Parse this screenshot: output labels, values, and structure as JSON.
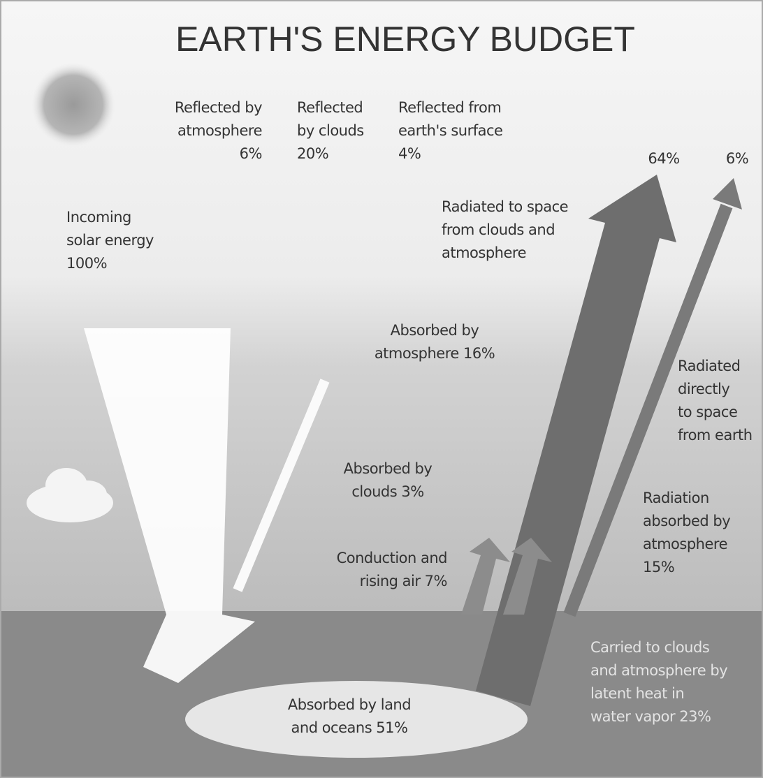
{
  "title": "EARTH'S ENERGY BUDGET",
  "labels": [
    {
      "lines": [
        "Reflected by",
        "atmosphere",
        "6%"
      ]
    },
    {
      "lines": [
        "Reflected",
        "by clouds",
        "20%"
      ]
    },
    {
      "lines": [
        "Reflected from",
        "earth's surface",
        "4%"
      ]
    },
    {
      "lines": [
        "64%"
      ]
    },
    {
      "lines": [
        "6%"
      ]
    },
    {
      "lines": [
        "Incoming",
        "solar energy",
        "100%"
      ]
    },
    {
      "lines": [
        "Radiated to space",
        "from clouds and",
        "atmosphere"
      ]
    },
    {
      "lines": [
        "Absorbed by",
        "atmosphere 16%"
      ]
    },
    {
      "lines": [
        "Radiated",
        "directly",
        "to space",
        "from earth"
      ]
    },
    {
      "lines": [
        "Absorbed by",
        "clouds 3%"
      ]
    },
    {
      "lines": [
        "Radiation",
        "absorbed by",
        "atmosphere",
        "15%"
      ]
    },
    {
      "lines": [
        "Conduction and",
        "rising air 7%"
      ]
    },
    {
      "lines": [
        "Carried to clouds",
        "and atmosphere by",
        "latent heat in",
        "water vapor 23%"
      ]
    },
    {
      "lines": [
        "Absorbed by land",
        "and oceans 51%"
      ]
    }
  ]
}
